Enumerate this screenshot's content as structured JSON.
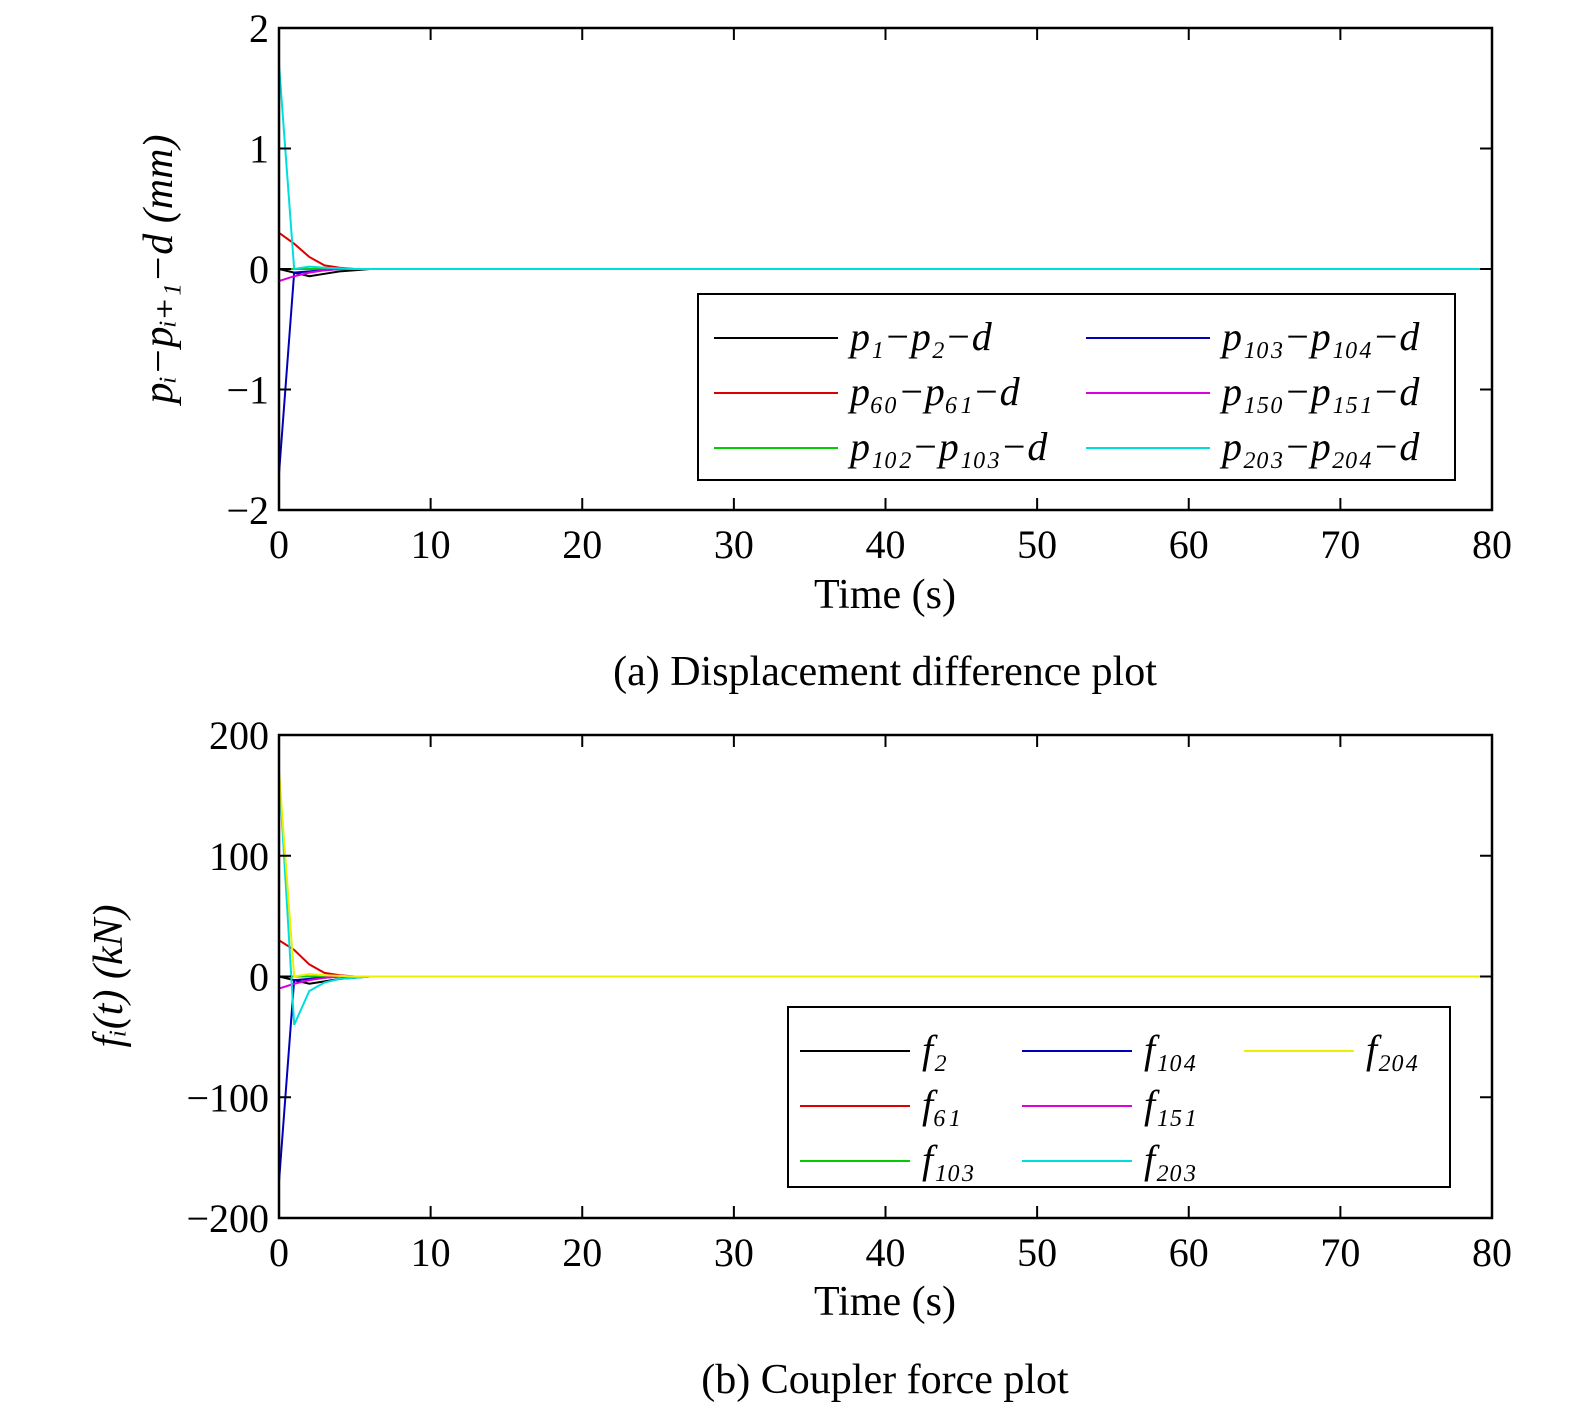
{
  "chart_data": [
    {
      "type": "line",
      "caption": "(a) Displacement difference plot",
      "xlabel": "Time (s)",
      "ylabel": "pᵢ−pᵢ₊₁−d (mm)",
      "xlim": [
        0,
        80
      ],
      "ylim": [
        -2,
        2
      ],
      "xticks": [
        0,
        10,
        20,
        30,
        40,
        50,
        60,
        70,
        80
      ],
      "yticks": [
        2,
        1,
        0,
        -1,
        -2
      ],
      "ytick_labels": [
        "2",
        "1",
        "0",
        "−1",
        "−2"
      ],
      "grid": false,
      "legend_position": "center-right",
      "legend_columns": 2,
      "x": [
        0,
        1,
        2,
        3,
        4,
        5,
        6,
        8,
        80
      ],
      "series": [
        {
          "name": "p₁−p₂−d",
          "color": "#000000",
          "values": [
            0,
            -0.03,
            -0.06,
            -0.04,
            -0.02,
            -0.01,
            0,
            0,
            0
          ]
        },
        {
          "name": "p₆₀−p₆₁−d",
          "color": "#dd0000",
          "values": [
            0.3,
            0.21,
            0.1,
            0.03,
            0.01,
            0,
            0,
            0,
            0
          ]
        },
        {
          "name": "p₁₀₂−p₁₀₃−d",
          "color": "#00cc00",
          "values": [
            0,
            0,
            0,
            0,
            0,
            0,
            0,
            0,
            0
          ]
        },
        {
          "name": "p₁₀₃−p₁₀₄−d",
          "color": "#0000bb",
          "values": [
            -1.7,
            -0.03,
            -0.02,
            -0.01,
            0,
            0,
            0,
            0,
            0
          ]
        },
        {
          "name": "p₁₅₀−p₁₅₁−d",
          "color": "#dd00dd",
          "values": [
            -0.1,
            -0.06,
            -0.03,
            -0.01,
            0,
            0,
            0,
            0,
            0
          ]
        },
        {
          "name": "p₂₀₃−p₂₀₄−d",
          "color": "#00dddd",
          "values": [
            1.7,
            0.0,
            0.02,
            0.01,
            0.005,
            0,
            0,
            0,
            0
          ]
        }
      ]
    },
    {
      "type": "line",
      "caption": "(b) Coupler force plot",
      "xlabel": "Time (s)",
      "ylabel": "fᵢ(t) (kN)",
      "xlim": [
        0,
        80
      ],
      "ylim": [
        -200,
        200
      ],
      "xticks": [
        0,
        10,
        20,
        30,
        40,
        50,
        60,
        70,
        80
      ],
      "yticks": [
        200,
        100,
        0,
        -100,
        -200
      ],
      "ytick_labels": [
        "200",
        "100",
        "0",
        "−100",
        "−200"
      ],
      "grid": false,
      "legend_position": "bottom-right",
      "legend_columns": 3,
      "x": [
        0,
        1,
        2,
        3,
        4,
        5,
        6,
        8,
        80
      ],
      "series": [
        {
          "name": "f₂",
          "color": "#000000",
          "values": [
            0,
            -3,
            -6,
            -4,
            -2,
            -1,
            0,
            0,
            0
          ]
        },
        {
          "name": "f₆₁",
          "color": "#dd0000",
          "values": [
            30,
            22,
            10,
            3,
            1,
            0,
            0,
            0,
            0
          ]
        },
        {
          "name": "f₁₀₃",
          "color": "#00cc00",
          "values": [
            0,
            0,
            0,
            0,
            0,
            0,
            0,
            0,
            0
          ]
        },
        {
          "name": "f₁₀₄",
          "color": "#0000bb",
          "values": [
            -170,
            -3,
            -2,
            -1,
            0,
            0,
            0,
            0,
            0
          ]
        },
        {
          "name": "f₁₅₁",
          "color": "#dd00dd",
          "values": [
            -10,
            -6,
            -3,
            -1,
            0,
            0,
            0,
            0,
            0
          ]
        },
        {
          "name": "f₂₀₃",
          "color": "#00dddd",
          "values": [
            170,
            -40,
            -12,
            -5,
            -2,
            -1,
            0,
            0,
            0
          ]
        },
        {
          "name": "f₂₀₄",
          "color": "#eeee00",
          "values": [
            170,
            0,
            2,
            1,
            0.5,
            0,
            0,
            0,
            0
          ]
        }
      ]
    }
  ]
}
